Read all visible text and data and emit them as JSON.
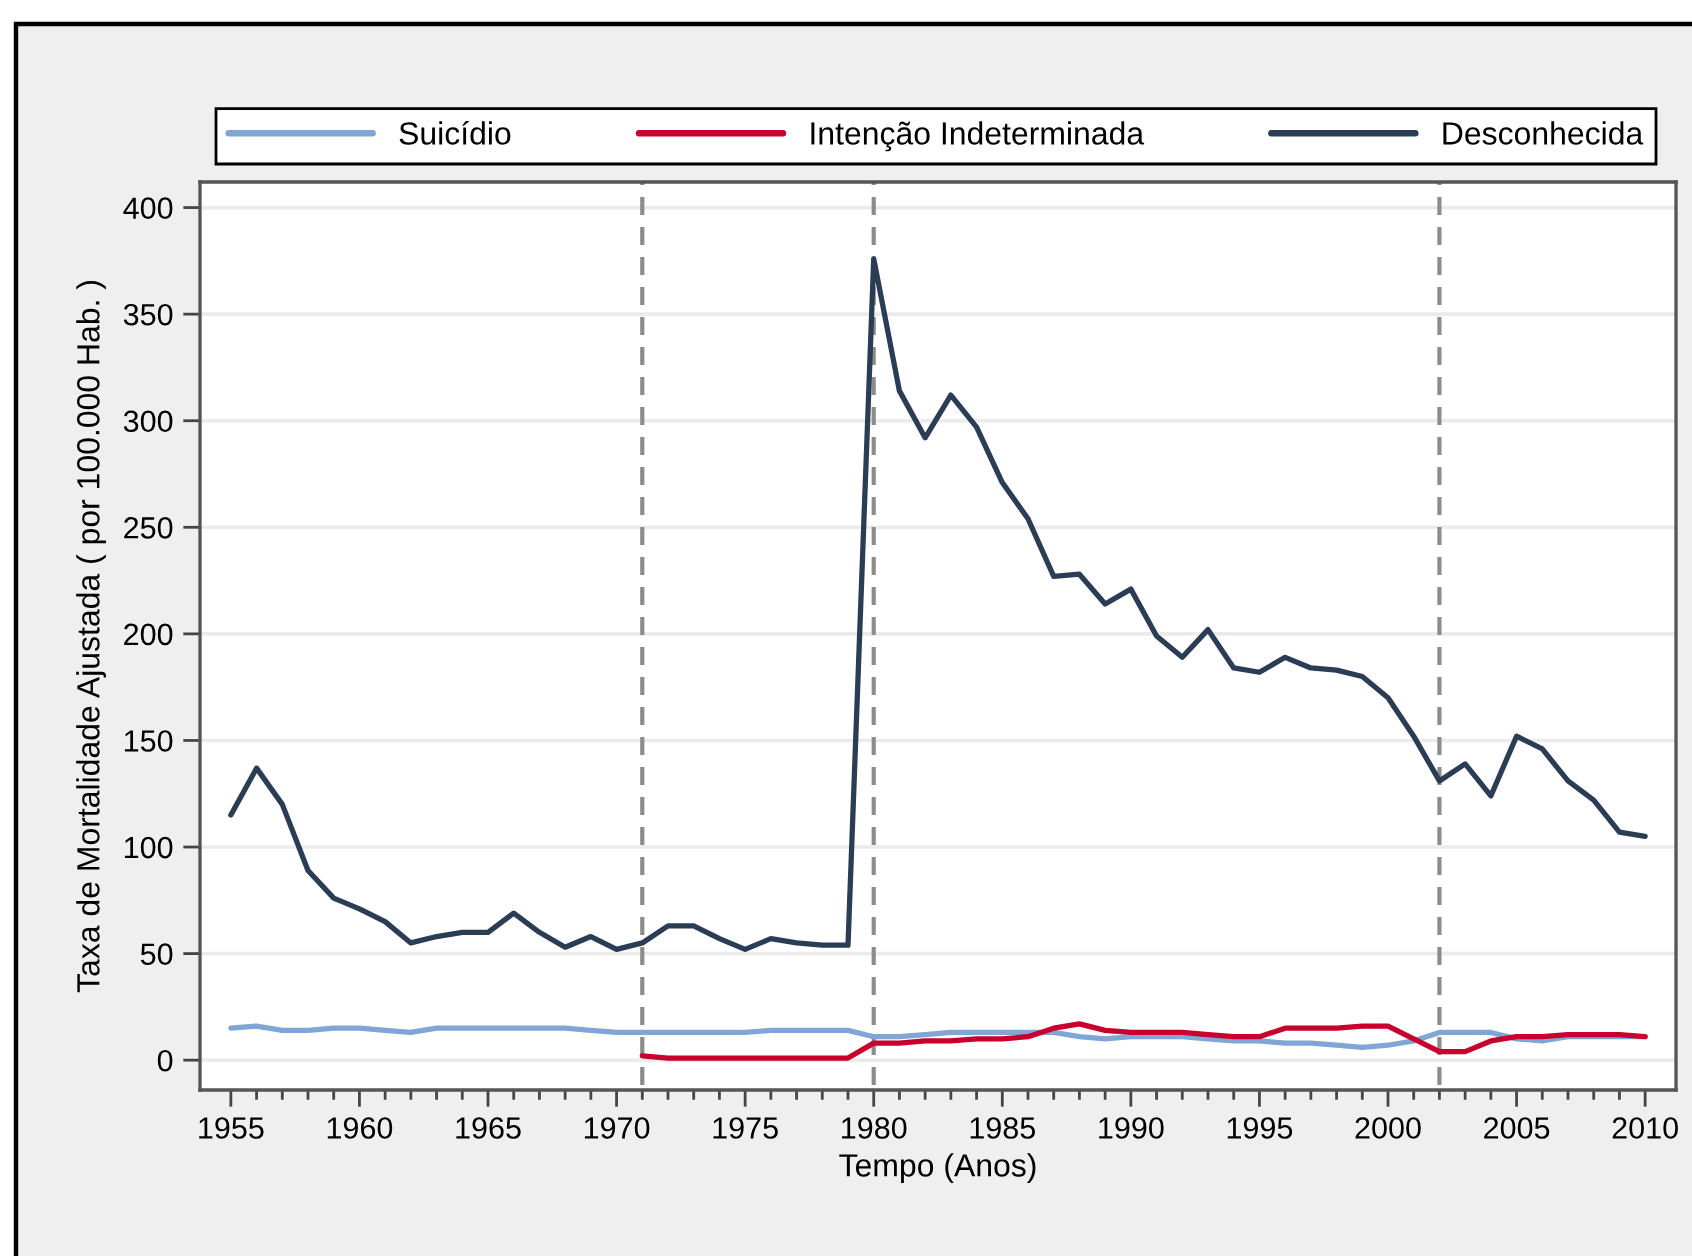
{
  "chart_data": {
    "type": "line",
    "xlabel": "Tempo (Anos)",
    "ylabel": "Taxa de Mortalidade Ajustada ( por 100.000 Hab. )",
    "x": [
      1955,
      1956,
      1957,
      1958,
      1959,
      1960,
      1961,
      1962,
      1963,
      1964,
      1965,
      1966,
      1967,
      1968,
      1969,
      1970,
      1971,
      1972,
      1973,
      1974,
      1975,
      1976,
      1977,
      1978,
      1979,
      1980,
      1981,
      1982,
      1983,
      1984,
      1985,
      1986,
      1987,
      1988,
      1989,
      1990,
      1991,
      1992,
      1993,
      1994,
      1995,
      1996,
      1997,
      1998,
      1999,
      2000,
      2001,
      2002,
      2003,
      2004,
      2005,
      2006,
      2007,
      2008,
      2009,
      2010
    ],
    "series": [
      {
        "name": "Suicídio",
        "color": "#7fa6d4",
        "values": [
          15,
          16,
          14,
          14,
          15,
          15,
          14,
          13,
          15,
          15,
          15,
          15,
          15,
          15,
          14,
          13,
          13,
          13,
          13,
          13,
          13,
          14,
          14,
          14,
          14,
          11,
          11,
          12,
          13,
          13,
          13,
          13,
          13,
          11,
          10,
          11,
          11,
          11,
          10,
          9,
          9,
          8,
          8,
          7,
          6,
          7,
          9,
          13,
          13,
          13,
          10,
          9,
          11,
          11,
          11,
          11
        ]
      },
      {
        "name": "Intenção Indeterminada",
        "color": "#c8002d",
        "values": [
          null,
          null,
          null,
          null,
          null,
          null,
          null,
          null,
          null,
          null,
          null,
          null,
          null,
          null,
          null,
          null,
          2,
          1,
          1,
          1,
          1,
          1,
          1,
          1,
          1,
          8,
          8,
          9,
          9,
          10,
          10,
          11,
          15,
          17,
          14,
          13,
          13,
          13,
          12,
          11,
          11,
          15,
          15,
          15,
          16,
          16,
          10,
          4,
          4,
          9,
          11,
          11,
          12,
          12,
          12,
          11
        ]
      },
      {
        "name": "Desconhecida",
        "color": "#2b3c55",
        "values": [
          115,
          137,
          120,
          89,
          76,
          71,
          65,
          55,
          58,
          60,
          60,
          69,
          60,
          53,
          58,
          52,
          55,
          63,
          63,
          57,
          52,
          57,
          55,
          54,
          54,
          376,
          314,
          292,
          312,
          297,
          271,
          254,
          227,
          228,
          214,
          221,
          199,
          189,
          202,
          184,
          182,
          189,
          184,
          183,
          180,
          170,
          152,
          131,
          139,
          124,
          152,
          146,
          131,
          122,
          107,
          105
        ]
      }
    ],
    "xlim": [
      1953.8,
      2011.2
    ],
    "xticks": [
      1955,
      {
        "value": 1956,
        "label": null
      },
      {
        "value": 1957,
        "label": null
      },
      {
        "value": 1958,
        "label": null
      },
      {
        "value": 1959,
        "label": null
      },
      1960,
      {
        "value": 1961,
        "label": null
      },
      {
        "value": 1962,
        "label": null
      },
      {
        "value": 1963,
        "label": null
      },
      {
        "value": 1964,
        "label": null
      },
      1965,
      {
        "value": 1966,
        "label": null
      },
      {
        "value": 1967,
        "label": null
      },
      {
        "value": 1968,
        "label": null
      },
      {
        "value": 1969,
        "label": null
      },
      1970,
      {
        "value": 1971,
        "label": null
      },
      {
        "value": 1972,
        "label": null
      },
      {
        "value": 1973,
        "label": null
      },
      {
        "value": 1974,
        "label": null
      },
      1975,
      {
        "value": 1976,
        "label": null
      },
      {
        "value": 1977,
        "label": null
      },
      {
        "value": 1978,
        "label": null
      },
      {
        "value": 1979,
        "label": null
      },
      1980,
      {
        "value": 1981,
        "label": null
      },
      {
        "value": 1982,
        "label": null
      },
      {
        "value": 1983,
        "label": null
      },
      {
        "value": 1984,
        "label": null
      },
      1985,
      {
        "value": 1986,
        "label": null
      },
      {
        "value": 1987,
        "label": null
      },
      {
        "value": 1988,
        "label": null
      },
      {
        "value": 1989,
        "label": null
      },
      1990,
      {
        "value": 1991,
        "label": null
      },
      {
        "value": 1992,
        "label": null
      },
      {
        "value": 1993,
        "label": null
      },
      {
        "value": 1994,
        "label": null
      },
      1995,
      {
        "value": 1996,
        "label": null
      },
      {
        "value": 1997,
        "label": null
      },
      {
        "value": 1998,
        "label": null
      },
      {
        "value": 1999,
        "label": null
      },
      2000,
      {
        "value": 2001,
        "label": null
      },
      {
        "value": 2002,
        "label": null
      },
      {
        "value": 2003,
        "label": null
      },
      {
        "value": 2004,
        "label": null
      },
      2005,
      {
        "value": 2006,
        "label": null
      },
      {
        "value": 2007,
        "label": null
      },
      {
        "value": 2008,
        "label": null
      },
      {
        "value": 2009,
        "label": null
      },
      2010
    ],
    "ylim": [
      -14,
      412
    ],
    "yticks": [
      0,
      50,
      100,
      150,
      200,
      250,
      300,
      350,
      400
    ],
    "grid": "y",
    "legend": "top",
    "marker": "none",
    "line_style": "solid",
    "ref_lines": [
      {
        "axis": "x",
        "value": 1971,
        "color": "#8c8c8c",
        "line_style": "dashed"
      },
      {
        "axis": "x",
        "value": 1980,
        "color": "#8c8c8c",
        "line_style": "dashed"
      },
      {
        "axis": "x",
        "value": 2002,
        "color": "#8c8c8c",
        "line_style": "dashed"
      }
    ]
  }
}
